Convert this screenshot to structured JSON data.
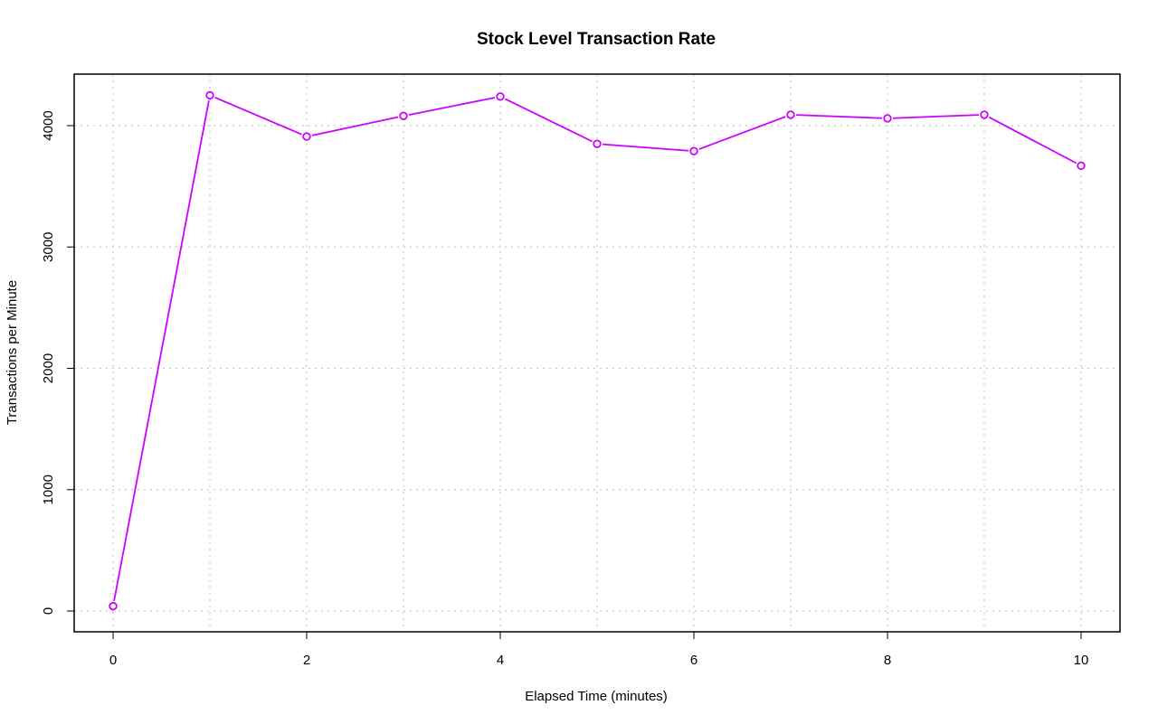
{
  "chart_data": {
    "type": "line",
    "title": "Stock Level Transaction Rate",
    "xlabel": "Elapsed Time (minutes)",
    "ylabel": "Transactions per Minute",
    "xlim": [
      0,
      10
    ],
    "ylim": [
      0,
      4250
    ],
    "x_ticks": [
      0,
      2,
      4,
      6,
      8,
      10
    ],
    "y_ticks": [
      0,
      1000,
      2000,
      3000,
      4000
    ],
    "grid": true,
    "series": [
      {
        "x": [
          0,
          1,
          2,
          3,
          4,
          5,
          6,
          7,
          8,
          9,
          10
        ],
        "values": [
          40,
          4250,
          3910,
          4080,
          4240,
          3850,
          3790,
          4090,
          4060,
          4090,
          3670
        ],
        "color": "#cc00ff",
        "marker": "open-circle"
      }
    ]
  }
}
